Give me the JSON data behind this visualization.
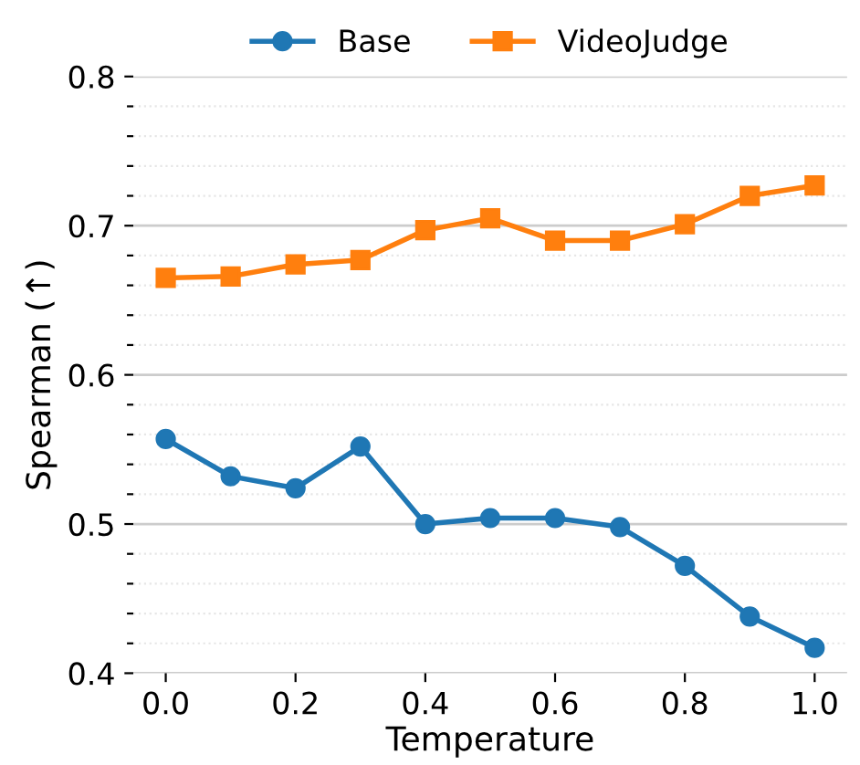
{
  "chart_data": {
    "type": "line",
    "xlabel": "Temperature",
    "ylabel": "Spearman (↑)",
    "x": [
      0.0,
      0.1,
      0.2,
      0.3,
      0.4,
      0.5,
      0.6,
      0.7,
      0.8,
      0.9,
      1.0
    ],
    "series": [
      {
        "name": "Base",
        "color": "#1f77b4",
        "marker": "circle",
        "values": [
          0.557,
          0.532,
          0.524,
          0.552,
          0.5,
          0.504,
          0.504,
          0.498,
          0.472,
          0.438,
          0.417
        ]
      },
      {
        "name": "VideoJudge",
        "color": "#ff7f0e",
        "marker": "square",
        "values": [
          0.665,
          0.666,
          0.674,
          0.677,
          0.697,
          0.705,
          0.69,
          0.69,
          0.701,
          0.72,
          0.727
        ]
      }
    ],
    "xlim": [
      -0.05,
      1.05
    ],
    "xticks": [
      {
        "value": 0,
        "label": "0.0"
      },
      0.2,
      0.4,
      0.6,
      0.8,
      {
        "value": 1,
        "label": "1.0"
      }
    ],
    "ylim": [
      0.4,
      0.8
    ],
    "yticks": [
      0.4,
      {
        "value": 0.42,
        "label": null
      },
      {
        "value": 0.44,
        "label": null
      },
      {
        "value": 0.46,
        "label": null
      },
      {
        "value": 0.48,
        "label": null
      },
      0.5,
      {
        "value": 0.52,
        "label": null
      },
      {
        "value": 0.54,
        "label": null
      },
      {
        "value": 0.56,
        "label": null
      },
      {
        "value": 0.58,
        "label": null
      },
      0.6,
      {
        "value": 0.62,
        "label": null
      },
      {
        "value": 0.64,
        "label": null
      },
      {
        "value": 0.66,
        "label": null
      },
      {
        "value": 0.68,
        "label": null
      },
      0.7,
      {
        "value": 0.72,
        "label": null
      },
      {
        "value": 0.74,
        "label": null
      },
      {
        "value": 0.76,
        "label": null
      },
      {
        "value": 0.78,
        "label": null
      },
      0.8
    ],
    "grid": "y",
    "legend": "top",
    "line_style": "solid"
  }
}
